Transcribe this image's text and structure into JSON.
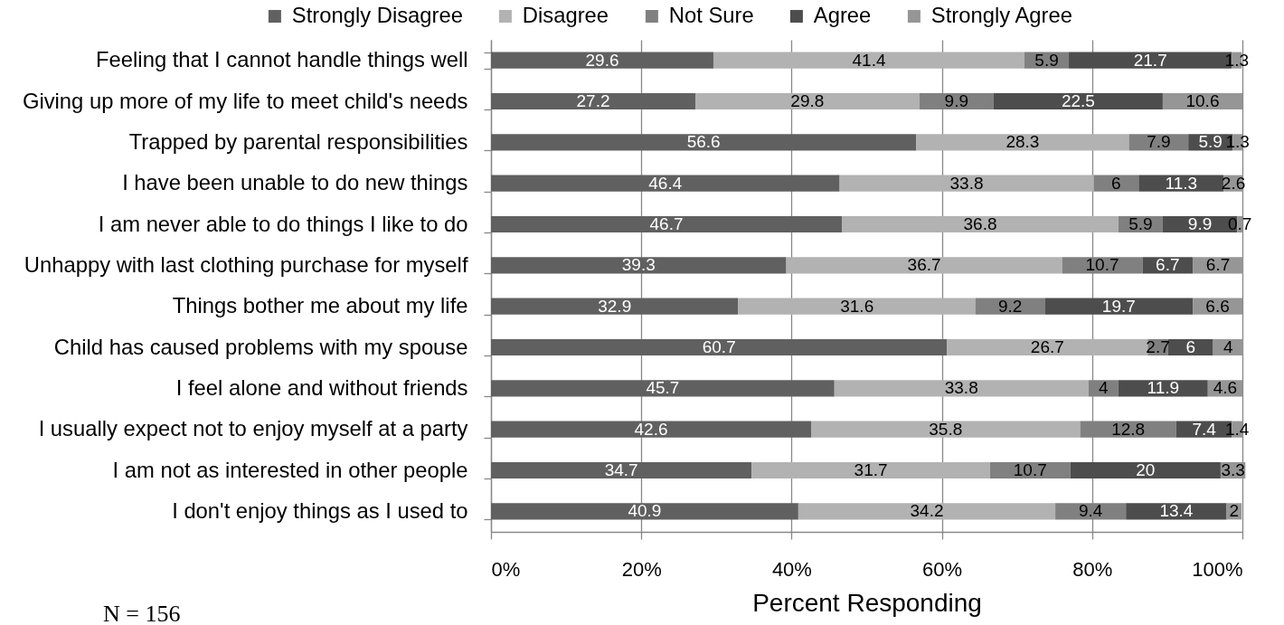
{
  "chart_data": {
    "type": "bar",
    "orientation": "horizontal",
    "stacked": true,
    "categories": [
      "Feeling that I cannot handle things well",
      "Giving up more of my life to meet child's needs",
      "Trapped by parental responsibilities",
      "I have been unable to do new things",
      "I am never able to do things I like to do",
      "Unhappy with last clothing purchase for myself",
      "Things bother me about my life",
      "Child has caused problems with my spouse",
      "I feel alone and without friends",
      "I usually expect not to enjoy myself at a party",
      "I am not as interested in other people",
      "I don't enjoy things as I used to"
    ],
    "series": [
      {
        "name": "Strongly Disagree",
        "color": "#606060",
        "values": [
          29.6,
          27.2,
          56.6,
          46.4,
          46.7,
          39.3,
          32.9,
          60.7,
          45.7,
          42.6,
          34.7,
          40.9
        ]
      },
      {
        "name": "Disagree",
        "color": "#b2b2b2",
        "values": [
          41.4,
          29.8,
          28.3,
          33.8,
          36.8,
          36.7,
          31.6,
          26.7,
          33.8,
          35.8,
          31.7,
          34.2
        ]
      },
      {
        "name": "Not Sure",
        "color": "#808080",
        "values": [
          5.9,
          9.9,
          7.9,
          6,
          5.9,
          10.7,
          9.2,
          2.7,
          4,
          12.8,
          10.7,
          9.4
        ]
      },
      {
        "name": "Agree",
        "color": "#4d4d4d",
        "values": [
          21.7,
          22.5,
          5.9,
          11.3,
          9.9,
          6.7,
          19.7,
          6,
          11.9,
          7.4,
          20,
          13.4
        ]
      },
      {
        "name": "Strongly Agree",
        "color": "#969696",
        "values": [
          1.3,
          10.6,
          1.3,
          2.6,
          0.7,
          6.7,
          6.6,
          4,
          4.6,
          1.4,
          3.3,
          2
        ]
      }
    ],
    "xlabel": "Percent Responding",
    "xlim": [
      0,
      100
    ],
    "xticks": [
      {
        "value": 0,
        "label": "0%"
      },
      {
        "value": 20,
        "label": "20%"
      },
      {
        "value": 40,
        "label": "40%"
      },
      {
        "value": 60,
        "label": "60%"
      },
      {
        "value": 80,
        "label": "80%"
      },
      {
        "value": 100,
        "label": "100%"
      }
    ],
    "grid": "x",
    "legend": "top",
    "data_labels": true,
    "annotations": [
      "N = 156"
    ]
  }
}
